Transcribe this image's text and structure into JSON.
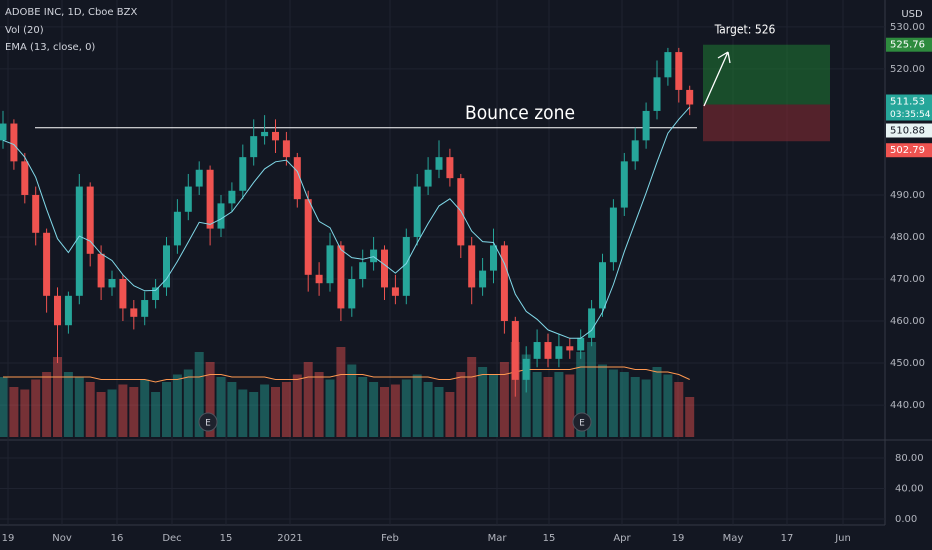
{
  "header": {
    "symbol": "ADOBE INC, 1D, Cboe BZX",
    "volume_study": "Vol (20)",
    "ema_study": "EMA (13, close, 0)"
  },
  "chart_data": {
    "type": "candlestick",
    "x_labels": [
      "19",
      "Nov",
      "16",
      "Dec",
      "15",
      "2021",
      "Feb",
      "Mar",
      "15",
      "Apr",
      "19",
      "May",
      "17",
      "Jun"
    ],
    "open": [
      503,
      507,
      498,
      490,
      481,
      466,
      459,
      466,
      492,
      476,
      468,
      470,
      463,
      461,
      465,
      468,
      478,
      486,
      492,
      496,
      482,
      488,
      491,
      499,
      504,
      505,
      503,
      499,
      489,
      471,
      469,
      478,
      463,
      470,
      474,
      477,
      468,
      466,
      480,
      492,
      496,
      499,
      494,
      478,
      468,
      472,
      478,
      460,
      446,
      451,
      455,
      451,
      454,
      453,
      456,
      463,
      474,
      487,
      498,
      503,
      510,
      518,
      524,
      515
    ],
    "high": [
      510,
      508,
      500,
      492,
      482,
      468,
      467,
      495,
      493,
      478,
      472,
      471,
      465,
      467,
      470,
      480,
      489,
      495,
      498,
      497,
      490,
      493,
      502,
      508,
      509,
      508,
      505,
      500,
      491,
      474,
      481,
      479,
      473,
      477,
      480,
      478,
      471,
      482,
      495,
      499,
      503,
      501,
      495,
      480,
      475,
      482,
      479,
      461,
      454,
      458,
      457,
      457,
      456,
      458,
      465,
      476,
      489,
      500,
      506,
      512,
      522,
      525,
      525,
      516
    ],
    "low": [
      501,
      496,
      488,
      478,
      462,
      450,
      457,
      464,
      473,
      465,
      466,
      460,
      458,
      459,
      463,
      466,
      476,
      484,
      490,
      478,
      480,
      486,
      489,
      497,
      502,
      500,
      497,
      487,
      467,
      466,
      467,
      460,
      461,
      468,
      472,
      465,
      464,
      464,
      478,
      490,
      494,
      492,
      475,
      464,
      466,
      469,
      457,
      442,
      443,
      449,
      449,
      449,
      451,
      451,
      454,
      461,
      472,
      485,
      496,
      501,
      508,
      516,
      512,
      509
    ],
    "close": [
      507,
      498,
      490,
      481,
      466,
      459,
      466,
      492,
      476,
      468,
      470,
      463,
      461,
      465,
      468,
      478,
      486,
      492,
      496,
      482,
      488,
      491,
      499,
      504,
      505,
      503,
      499,
      489,
      471,
      469,
      478,
      463,
      470,
      474,
      477,
      468,
      466,
      480,
      492,
      496,
      499,
      494,
      478,
      468,
      472,
      478,
      460,
      446,
      451,
      455,
      451,
      454,
      453,
      456,
      463,
      474,
      487,
      498,
      503,
      510,
      518,
      524,
      515,
      511.53
    ],
    "up_color": "#26a69a",
    "down_color": "#ef5350",
    "ylim": [
      432.4,
      536.4
    ],
    "yticks": [
      {
        "value": 440,
        "label": "440.00"
      },
      {
        "value": 450,
        "label": "450.00"
      },
      {
        "value": 460,
        "label": "460.00"
      },
      {
        "value": 470,
        "label": "470.00"
      },
      {
        "value": 480,
        "label": "480.00"
      },
      {
        "value": 490,
        "label": "490.00"
      },
      {
        "value": 520,
        "label": "520.00"
      },
      {
        "value": 530,
        "label": "530.00"
      }
    ],
    "grid": true,
    "currency": "USD",
    "ema": {
      "color": "#80d8e8",
      "values": [
        503,
        502,
        499,
        494.2,
        486.6,
        479.6,
        476.3,
        480.2,
        479,
        476,
        474.4,
        471,
        468.4,
        467.2,
        467.3,
        470,
        474.2,
        478.8,
        483.5,
        483,
        484.3,
        486,
        489.4,
        493,
        496.2,
        497.9,
        498.3,
        495.6,
        489,
        483.7,
        482.2,
        477,
        475.1,
        474.7,
        475.3,
        473.4,
        471.4,
        473.7,
        478.6,
        483.2,
        487.4,
        489.1,
        486.2,
        481.4,
        478.9,
        478.7,
        473.7,
        466.4,
        462.3,
        460.4,
        457.9,
        456.9,
        455.9,
        455.9,
        457.8,
        462.1,
        468.7,
        476.5,
        483.5,
        490.5,
        497.8,
        504.7,
        508,
        510.88
      ]
    },
    "volume": {
      "vlim": [
        0,
        8
      ],
      "ma_color": "#ff9850",
      "values": [
        2.4,
        2.0,
        1.9,
        2.3,
        2.6,
        3.2,
        2.6,
        2.4,
        2.2,
        1.8,
        1.9,
        2.1,
        2.0,
        2.3,
        1.8,
        2.2,
        2.5,
        2.7,
        3.4,
        3.0,
        2.4,
        2.2,
        1.9,
        1.8,
        2.1,
        2.0,
        2.2,
        2.5,
        3.0,
        2.6,
        2.3,
        3.6,
        2.9,
        2.4,
        2.2,
        2.0,
        2.1,
        2.3,
        2.5,
        2.2,
        2.0,
        1.8,
        2.6,
        3.2,
        2.8,
        2.5,
        3.0,
        3.8,
        3.3,
        2.6,
        2.4,
        2.6,
        2.5,
        3.4,
        3.8,
        2.9,
        2.7,
        2.6,
        2.4,
        2.3,
        2.8,
        2.5,
        2.2,
        1.6
      ],
      "ma_values": [
        2.4,
        2.4,
        2.4,
        2.4,
        2.4,
        2.4,
        2.4,
        2.4,
        2.4,
        2.3,
        2.3,
        2.3,
        2.3,
        2.3,
        2.2,
        2.3,
        2.3,
        2.4,
        2.4,
        2.5,
        2.5,
        2.4,
        2.4,
        2.4,
        2.4,
        2.3,
        2.3,
        2.3,
        2.4,
        2.4,
        2.4,
        2.5,
        2.5,
        2.5,
        2.4,
        2.4,
        2.4,
        2.4,
        2.4,
        2.4,
        2.3,
        2.3,
        2.4,
        2.4,
        2.5,
        2.5,
        2.5,
        2.6,
        2.7,
        2.7,
        2.7,
        2.7,
        2.7,
        2.8,
        2.8,
        2.8,
        2.8,
        2.8,
        2.7,
        2.7,
        2.6,
        2.6,
        2.5,
        2.3
      ]
    },
    "annotations": {
      "bounce_zone": {
        "text": "Bounce zone",
        "level": 506
      },
      "target": {
        "text": "Target: 526"
      }
    },
    "position": {
      "target": 525.76,
      "entry": 511.53,
      "stop": 502.79,
      "countdown": "03:35:54"
    },
    "events": [
      "E",
      "E"
    ],
    "lower_pane": {
      "ylim": [
        -7.9,
        103.6
      ],
      "yticks": [
        {
          "value": 0,
          "label": "0.00"
        },
        {
          "value": 40,
          "label": "40.00"
        },
        {
          "value": 80,
          "label": "80.00"
        }
      ]
    }
  }
}
